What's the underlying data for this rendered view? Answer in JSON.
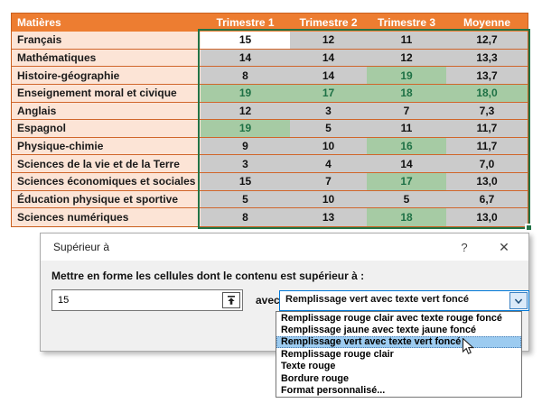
{
  "table": {
    "headers": [
      "Matières",
      "Trimestre 1",
      "Trimestre 2",
      "Trimestre 3",
      "Moyenne"
    ],
    "rows": [
      {
        "subject": "Français",
        "cells": [
          {
            "v": "15",
            "s": "active"
          },
          {
            "v": "12",
            "s": "sel"
          },
          {
            "v": "11",
            "s": "sel"
          },
          {
            "v": "12,7",
            "s": "sel"
          }
        ]
      },
      {
        "subject": "Mathématiques",
        "cells": [
          {
            "v": "14",
            "s": "sel"
          },
          {
            "v": "14",
            "s": "sel"
          },
          {
            "v": "12",
            "s": "sel"
          },
          {
            "v": "13,3",
            "s": "sel"
          }
        ]
      },
      {
        "subject": "Histoire-géographie",
        "cells": [
          {
            "v": "8",
            "s": "sel"
          },
          {
            "v": "14",
            "s": "sel"
          },
          {
            "v": "19",
            "s": "hl"
          },
          {
            "v": "13,7",
            "s": "sel"
          }
        ]
      },
      {
        "subject": "Enseignement moral et civique",
        "cells": [
          {
            "v": "19",
            "s": "hl"
          },
          {
            "v": "17",
            "s": "hl"
          },
          {
            "v": "18",
            "s": "hl"
          },
          {
            "v": "18,0",
            "s": "hl"
          }
        ]
      },
      {
        "subject": "Anglais",
        "cells": [
          {
            "v": "12",
            "s": "sel"
          },
          {
            "v": "3",
            "s": "sel"
          },
          {
            "v": "7",
            "s": "sel"
          },
          {
            "v": "7,3",
            "s": "sel"
          }
        ]
      },
      {
        "subject": "Espagnol",
        "cells": [
          {
            "v": "19",
            "s": "hl"
          },
          {
            "v": "5",
            "s": "sel"
          },
          {
            "v": "11",
            "s": "sel"
          },
          {
            "v": "11,7",
            "s": "sel"
          }
        ]
      },
      {
        "subject": "Physique-chimie",
        "cells": [
          {
            "v": "9",
            "s": "sel"
          },
          {
            "v": "10",
            "s": "sel"
          },
          {
            "v": "16",
            "s": "hl"
          },
          {
            "v": "11,7",
            "s": "sel"
          }
        ]
      },
      {
        "subject": "Sciences de la vie et de la Terre",
        "cells": [
          {
            "v": "3",
            "s": "sel"
          },
          {
            "v": "4",
            "s": "sel"
          },
          {
            "v": "14",
            "s": "sel"
          },
          {
            "v": "7,0",
            "s": "sel"
          }
        ]
      },
      {
        "subject": "Sciences économiques et sociales",
        "cells": [
          {
            "v": "15",
            "s": "sel"
          },
          {
            "v": "7",
            "s": "sel"
          },
          {
            "v": "17",
            "s": "hl"
          },
          {
            "v": "13,0",
            "s": "sel"
          }
        ]
      },
      {
        "subject": "Éducation physique et sportive",
        "cells": [
          {
            "v": "5",
            "s": "sel"
          },
          {
            "v": "10",
            "s": "sel"
          },
          {
            "v": "5",
            "s": "sel"
          },
          {
            "v": "6,7",
            "s": "sel"
          }
        ]
      },
      {
        "subject": "Sciences numériques",
        "cells": [
          {
            "v": "8",
            "s": "sel"
          },
          {
            "v": "13",
            "s": "sel"
          },
          {
            "v": "18",
            "s": "hl"
          },
          {
            "v": "13,0",
            "s": "sel"
          }
        ]
      }
    ]
  },
  "dialog": {
    "title": "Supérieur à",
    "help_label": "?",
    "close_label": "✕",
    "label": "Mettre en forme les cellules dont le contenu est supérieur à :",
    "input_value": "15",
    "with_label": "avec",
    "combo_value": "Remplissage vert avec texte vert foncé",
    "options": [
      "Remplissage rouge clair avec texte rouge foncé",
      "Remplissage jaune avec texte jaune foncé",
      "Remplissage vert avec texte vert foncé",
      "Remplissage rouge clair",
      "Texte rouge",
      "Bordure rouge",
      "Format personnalisé..."
    ],
    "selected_option_index": 2
  },
  "colors": {
    "header_bg": "#ED7D31",
    "header_text": "#FFFFFF",
    "subject_bg": "#FCE4D6",
    "row_border": "#D0662B",
    "selected_cell_bg": "#CBCBCB",
    "active_cell_bg": "#FFFFFF",
    "conditional_green_bg": "#A6CBA4",
    "conditional_green_text": "#1E7145",
    "selection_border": "#217346",
    "combo_focus_border": "#0078D7",
    "option_highlight_bg": "#9CCBF0"
  }
}
